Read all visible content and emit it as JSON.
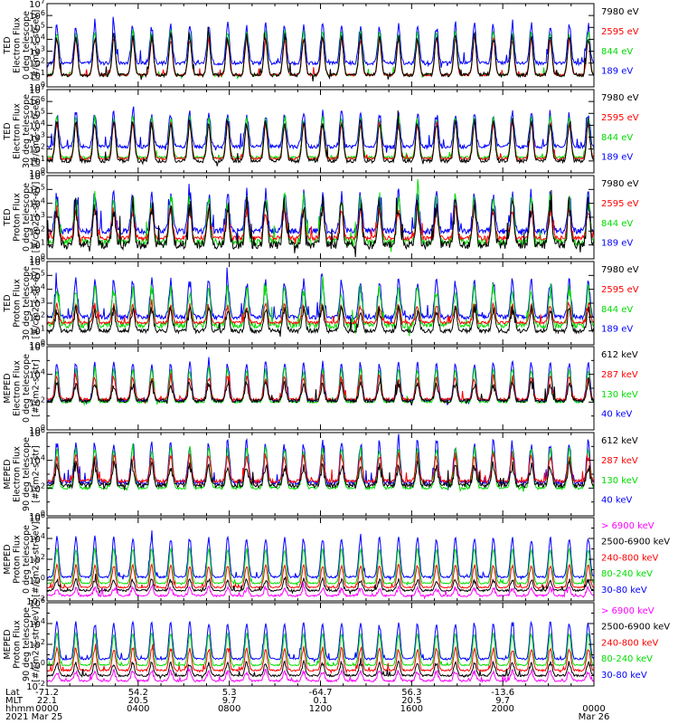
{
  "colors": {
    "black": "#000000",
    "red": "#ff0000",
    "green": "#00dd00",
    "blue": "#0000ff",
    "magenta": "#ff00ff"
  },
  "chart_data": [
    {
      "type": "line",
      "ylabel": [
        "TED",
        "Electron Flux",
        "0 deg telescope",
        "[#/cm2-s-str-eV]"
      ],
      "ylog": true,
      "ylim_exp": [
        0,
        7
      ],
      "ytick_labels": [
        "10^0",
        "10^1",
        "10^2",
        "10^3",
        "10^4",
        "10^5",
        "10^6",
        "10^7"
      ],
      "series": [
        {
          "name": "7980 eV",
          "color": "black",
          "base": 1.0,
          "peak": 4.2,
          "noise": 0.5
        },
        {
          "name": "2595 eV",
          "color": "red",
          "base": 1.0,
          "peak": 4.0,
          "noise": 0.3
        },
        {
          "name": "844 eV",
          "color": "green",
          "base": 1.0,
          "peak": 4.6,
          "noise": 0.3
        },
        {
          "name": "189 eV",
          "color": "blue",
          "base": 2.0,
          "peak": 5.1,
          "noise": 0.5
        }
      ]
    },
    {
      "type": "line",
      "ylabel": [
        "TED",
        "Electron Flux",
        "30 deg telescope",
        "[#/cm2-s-str-eV]"
      ],
      "ylog": true,
      "ylim_exp": [
        0,
        7
      ],
      "ytick_labels": [
        "10^0",
        "10^1",
        "10^2",
        "10^3",
        "10^4",
        "10^5",
        "10^6",
        "10^7"
      ],
      "series": [
        {
          "name": "7980 eV",
          "color": "black",
          "base": 1.0,
          "peak": 4.3,
          "noise": 0.5
        },
        {
          "name": "2595 eV",
          "color": "red",
          "base": 1.2,
          "peak": 4.1,
          "noise": 0.3
        },
        {
          "name": "844 eV",
          "color": "green",
          "base": 1.3,
          "peak": 4.6,
          "noise": 0.3
        },
        {
          "name": "189 eV",
          "color": "blue",
          "base": 2.2,
          "peak": 5.0,
          "noise": 0.5
        }
      ]
    },
    {
      "type": "line",
      "ylabel": [
        "TED",
        "Proton Flux",
        "0 deg telescope",
        "[#/cm2-s-str-eV]"
      ],
      "ylog": true,
      "ylim_exp": [
        0,
        6
      ],
      "ytick_labels": [
        "10^0",
        "10^1",
        "10^2",
        "10^3",
        "10^4",
        "10^5",
        "10^6"
      ],
      "series": [
        {
          "name": "7980 eV",
          "color": "black",
          "base": 1.0,
          "peak": 3.8,
          "noise": 1.0
        },
        {
          "name": "2595 eV",
          "color": "red",
          "base": 1.5,
          "peak": 3.5,
          "noise": 0.5
        },
        {
          "name": "844 eV",
          "color": "green",
          "base": 1.2,
          "peak": 4.2,
          "noise": 0.8
        },
        {
          "name": "189 eV",
          "color": "blue",
          "base": 2.0,
          "peak": 4.6,
          "noise": 0.7
        }
      ]
    },
    {
      "type": "line",
      "ylabel": [
        "TED",
        "Proton Flux",
        "30 deg telescope",
        "[#/cm2-s-str-eV]"
      ],
      "ylog": true,
      "ylim_exp": [
        0,
        6
      ],
      "ytick_labels": [
        "10^0",
        "10^1",
        "10^2",
        "10^3",
        "10^4",
        "10^5",
        "10^6"
      ],
      "series": [
        {
          "name": "7980 eV",
          "color": "black",
          "base": 1.0,
          "peak": 2.5,
          "noise": 0.5
        },
        {
          "name": "2595 eV",
          "color": "red",
          "base": 1.6,
          "peak": 2.8,
          "noise": 0.3
        },
        {
          "name": "844 eV",
          "color": "green",
          "base": 1.4,
          "peak": 4.0,
          "noise": 0.7
        },
        {
          "name": "189 eV",
          "color": "blue",
          "base": 2.0,
          "peak": 4.5,
          "noise": 0.5
        }
      ]
    },
    {
      "type": "line",
      "ylabel": [
        "MEPED",
        "Electron Flux",
        "0 deg telescope",
        "[#/cm2-s-str]"
      ],
      "ylog": true,
      "ylim_exp": [
        0,
        6
      ],
      "ytick_labels": [
        "10^0",
        "",
        "10^2",
        "",
        "10^4",
        "",
        "10^6"
      ],
      "series": [
        {
          "name": "612 keV",
          "color": "black",
          "base": 2.1,
          "peak": 3.3,
          "noise": 0.4
        },
        {
          "name": "287 keV",
          "color": "red",
          "base": 2.2,
          "peak": 3.8,
          "noise": 0.3
        },
        {
          "name": "130 keV",
          "color": "green",
          "base": 2.0,
          "peak": 4.3,
          "noise": 0.2
        },
        {
          "name": "40 keV",
          "color": "blue",
          "base": 2.1,
          "peak": 4.8,
          "noise": 0.3
        }
      ]
    },
    {
      "type": "line",
      "ylabel": [
        "MEPED",
        "Electron Flux",
        "90 deg telescope",
        "[#/cm2-s-str]"
      ],
      "ylog": true,
      "ylim_exp": [
        0,
        6
      ],
      "ytick_labels": [
        "10^0",
        "",
        "10^2",
        "",
        "10^4",
        "",
        "10^6"
      ],
      "series": [
        {
          "name": "612 keV",
          "color": "black",
          "base": 2.2,
          "peak": 3.6,
          "noise": 0.5
        },
        {
          "name": "287 keV",
          "color": "red",
          "base": 2.5,
          "peak": 4.3,
          "noise": 0.4
        },
        {
          "name": "130 keV",
          "color": "green",
          "base": 2.0,
          "peak": 4.8,
          "noise": 0.3
        },
        {
          "name": "40 keV",
          "color": "blue",
          "base": 2.4,
          "peak": 5.2,
          "noise": 0.5
        }
      ]
    },
    {
      "type": "line",
      "ylabel": [
        "MEPED",
        "Proton Flux",
        "0 deg telescope",
        "[#/cm2-s-str-keV]"
      ],
      "ylog": true,
      "ylim_exp": [
        -2,
        6
      ],
      "ytick_labels": [
        "10^-2",
        "",
        "10^0",
        "",
        "10^2",
        "",
        "10^4",
        "",
        "10^6"
      ],
      "series": [
        {
          "name": "> 6900 keV",
          "color": "magenta",
          "base": -1.5,
          "peak": -0.8,
          "noise": 0.3
        },
        {
          "name": "2500-6900 keV",
          "color": "black",
          "base": -1.0,
          "peak": 0.0,
          "noise": 0.3
        },
        {
          "name": "240-800 keV",
          "color": "red",
          "base": -0.7,
          "peak": 1.4,
          "noise": 0.2
        },
        {
          "name": "80-240 keV",
          "color": "green",
          "base": -0.3,
          "peak": 3.0,
          "noise": 0.2
        },
        {
          "name": "30-80 keV",
          "color": "blue",
          "base": 0.3,
          "peak": 4.0,
          "noise": 0.3
        }
      ]
    },
    {
      "type": "line",
      "ylabel": [
        "MEPED",
        "Proton Flux",
        "90 deg telescope",
        "[#/cm2-s-str-keV]"
      ],
      "ylog": true,
      "ylim_exp": [
        -2,
        6
      ],
      "ytick_labels": [
        "10^-2",
        "",
        "10^0",
        "",
        "10^2",
        "",
        "10^4",
        "",
        "10^6"
      ],
      "series": [
        {
          "name": "> 6900 keV",
          "color": "magenta",
          "base": -1.5,
          "peak": -0.6,
          "noise": 0.3
        },
        {
          "name": "2500-6900 keV",
          "color": "black",
          "base": -1.0,
          "peak": 0.2,
          "noise": 0.3
        },
        {
          "name": "240-800 keV",
          "color": "red",
          "base": -0.5,
          "peak": 1.6,
          "noise": 0.3
        },
        {
          "name": "80-240 keV",
          "color": "green",
          "base": 0.0,
          "peak": 3.0,
          "noise": 0.2
        },
        {
          "name": "30-80 keV",
          "color": "blue",
          "base": 0.6,
          "peak": 4.0,
          "noise": 0.3
        }
      ]
    }
  ],
  "x_axis": {
    "row_labels": [
      "Lat",
      "MLT",
      "hhmm",
      "2021"
    ],
    "ticks": [
      {
        "lat": "-71.2",
        "mlt": "22.1",
        "time": "0000",
        "date": "Mar 25"
      },
      {
        "lat": "54.2",
        "mlt": "20.5",
        "time": "0400",
        "date": ""
      },
      {
        "lat": "5.3",
        "mlt": "9.7",
        "time": "0800",
        "date": ""
      },
      {
        "lat": "-64.7",
        "mlt": "0.1",
        "time": "1200",
        "date": ""
      },
      {
        "lat": "56.3",
        "mlt": "20.5",
        "time": "1600",
        "date": ""
      },
      {
        "lat": "-13.6",
        "mlt": "9.7",
        "time": "2000",
        "date": ""
      },
      {
        "lat": "",
        "mlt": "",
        "time": "0000",
        "date": "Mar 26"
      }
    ]
  }
}
